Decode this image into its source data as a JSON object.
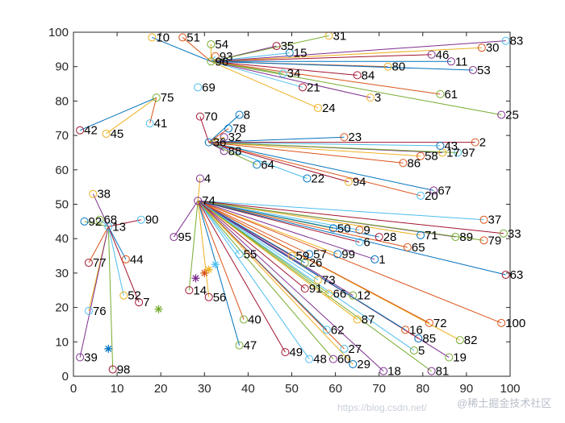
{
  "chart_data": {
    "type": "scatter",
    "title": "",
    "xlabel": "",
    "ylabel": "",
    "xlim": [
      0,
      100
    ],
    "ylim": [
      0,
      100
    ],
    "xticks": [
      0,
      10,
      20,
      30,
      40,
      50,
      60,
      70,
      80,
      90,
      100
    ],
    "yticks": [
      0,
      10,
      20,
      30,
      40,
      50,
      60,
      70,
      80,
      90,
      100
    ],
    "grid": false,
    "points": [
      {
        "id": "1",
        "x": 69,
        "y": 34
      },
      {
        "id": "2",
        "x": 92,
        "y": 68
      },
      {
        "id": "3",
        "x": 68,
        "y": 81
      },
      {
        "id": "4",
        "x": 29,
        "y": 57.5
      },
      {
        "id": "5",
        "x": 78,
        "y": 7.5
      },
      {
        "id": "6",
        "x": 65.5,
        "y": 39
      },
      {
        "id": "7",
        "x": 15,
        "y": 21.5
      },
      {
        "id": "8",
        "x": 38,
        "y": 76
      },
      {
        "id": "9",
        "x": 65.5,
        "y": 42.5
      },
      {
        "id": "10",
        "x": 18,
        "y": 98.5
      },
      {
        "id": "11",
        "x": 86.5,
        "y": 91.5
      },
      {
        "id": "12",
        "x": 64,
        "y": 23.5
      },
      {
        "id": "13",
        "x": 8,
        "y": 43.5
      },
      {
        "id": "14",
        "x": 26.5,
        "y": 25
      },
      {
        "id": "15",
        "x": 49.5,
        "y": 94
      },
      {
        "id": "16",
        "x": 76,
        "y": 13.5
      },
      {
        "id": "17",
        "x": 84.5,
        "y": 65
      },
      {
        "id": "18",
        "x": 71,
        "y": 1.5
      },
      {
        "id": "19",
        "x": 86,
        "y": 5.5
      },
      {
        "id": "20",
        "x": 79.5,
        "y": 52.5
      },
      {
        "id": "21",
        "x": 52.5,
        "y": 84
      },
      {
        "id": "22",
        "x": 53.5,
        "y": 57.5
      },
      {
        "id": "23",
        "x": 62,
        "y": 69.5
      },
      {
        "id": "24",
        "x": 56,
        "y": 78
      },
      {
        "id": "25",
        "x": 98,
        "y": 76
      },
      {
        "id": "26",
        "x": 53,
        "y": 33
      },
      {
        "id": "27",
        "x": 62,
        "y": 8
      },
      {
        "id": "28",
        "x": 70,
        "y": 40.5
      },
      {
        "id": "29",
        "x": 64,
        "y": 3.5
      },
      {
        "id": "30",
        "x": 93.5,
        "y": 95.5
      },
      {
        "id": "31",
        "x": 58.5,
        "y": 99
      },
      {
        "id": "32",
        "x": 34.5,
        "y": 69.5
      },
      {
        "id": "33",
        "x": 98.5,
        "y": 41.5
      },
      {
        "id": "34",
        "x": 48,
        "y": 88
      },
      {
        "id": "35",
        "x": 46.5,
        "y": 96
      },
      {
        "id": "36",
        "x": 31,
        "y": 68
      },
      {
        "id": "37",
        "x": 94,
        "y": 45.5
      },
      {
        "id": "38",
        "x": 4.5,
        "y": 53
      },
      {
        "id": "39",
        "x": 1.5,
        "y": 5.5
      },
      {
        "id": "40",
        "x": 39,
        "y": 16.5
      },
      {
        "id": "41",
        "x": 17.5,
        "y": 73.5
      },
      {
        "id": "42",
        "x": 1.5,
        "y": 71.5
      },
      {
        "id": "43",
        "x": 84,
        "y": 67
      },
      {
        "id": "44",
        "x": 12,
        "y": 34
      },
      {
        "id": "45",
        "x": 7.5,
        "y": 70.5
      },
      {
        "id": "46",
        "x": 82,
        "y": 93.5
      },
      {
        "id": "47",
        "x": 38,
        "y": 9
      },
      {
        "id": "48",
        "x": 54,
        "y": 5
      },
      {
        "id": "49",
        "x": 48.5,
        "y": 7
      },
      {
        "id": "50",
        "x": 59.5,
        "y": 43
      },
      {
        "id": "51",
        "x": 25,
        "y": 98.5
      },
      {
        "id": "52",
        "x": 11.5,
        "y": 23.5
      },
      {
        "id": "53",
        "x": 91.5,
        "y": 89
      },
      {
        "id": "54",
        "x": 31.5,
        "y": 96.5
      },
      {
        "id": "55",
        "x": 38,
        "y": 35.5
      },
      {
        "id": "56",
        "x": 31,
        "y": 23
      },
      {
        "id": "57",
        "x": 54,
        "y": 35.5
      },
      {
        "id": "58",
        "x": 79.5,
        "y": 64
      },
      {
        "id": "59",
        "x": 50,
        "y": 35
      },
      {
        "id": "60",
        "x": 59.5,
        "y": 5
      },
      {
        "id": "61",
        "x": 84,
        "y": 82
      },
      {
        "id": "62",
        "x": 58,
        "y": 13.5
      },
      {
        "id": "63",
        "x": 99,
        "y": 29.5
      },
      {
        "id": "64",
        "x": 42,
        "y": 61.5
      },
      {
        "id": "65",
        "x": 76.5,
        "y": 37.5
      },
      {
        "id": "66",
        "x": 58.5,
        "y": 24
      },
      {
        "id": "67",
        "x": 82.5,
        "y": 54
      },
      {
        "id": "68",
        "x": 6,
        "y": 45.5
      },
      {
        "id": "69",
        "x": 28.5,
        "y": 84
      },
      {
        "id": "70",
        "x": 29,
        "y": 75.5
      },
      {
        "id": "71",
        "x": 79.5,
        "y": 41
      },
      {
        "id": "72",
        "x": 81.5,
        "y": 15.5
      },
      {
        "id": "73",
        "x": 56,
        "y": 28
      },
      {
        "id": "74",
        "x": 28.5,
        "y": 51
      },
      {
        "id": "75",
        "x": 19,
        "y": 81
      },
      {
        "id": "76",
        "x": 3.5,
        "y": 19
      },
      {
        "id": "77",
        "x": 3.5,
        "y": 33
      },
      {
        "id": "78",
        "x": 35.5,
        "y": 72
      },
      {
        "id": "79",
        "x": 94,
        "y": 39.5
      },
      {
        "id": "80",
        "x": 72,
        "y": 90
      },
      {
        "id": "81",
        "x": 82,
        "y": 1.5
      },
      {
        "id": "82",
        "x": 88.5,
        "y": 10.5
      },
      {
        "id": "83",
        "x": 99,
        "y": 97.5
      },
      {
        "id": "84",
        "x": 65,
        "y": 87.5
      },
      {
        "id": "85",
        "x": 79,
        "y": 11
      },
      {
        "id": "86",
        "x": 75.5,
        "y": 62
      },
      {
        "id": "87",
        "x": 65,
        "y": 16.5
      },
      {
        "id": "88",
        "x": 34.5,
        "y": 65.5
      },
      {
        "id": "89",
        "x": 87.5,
        "y": 40.5
      },
      {
        "id": "90",
        "x": 15.5,
        "y": 45.5
      },
      {
        "id": "91",
        "x": 53,
        "y": 25.5
      },
      {
        "id": "92",
        "x": 2.5,
        "y": 45
      },
      {
        "id": "93",
        "x": 32.5,
        "y": 93
      },
      {
        "id": "94",
        "x": 63,
        "y": 56.5
      },
      {
        "id": "95",
        "x": 23,
        "y": 40.5
      },
      {
        "id": "96",
        "x": 31.5,
        "y": 91.5
      },
      {
        "id": "97",
        "x": 88,
        "y": 65
      },
      {
        "id": "98",
        "x": 9,
        "y": 2
      },
      {
        "id": "99",
        "x": 60.5,
        "y": 35.5
      },
      {
        "id": "100",
        "x": 98,
        "y": 15.5
      }
    ],
    "centers": [
      {
        "x": 8,
        "y": 8,
        "color": "#0072bd"
      },
      {
        "x": 19.5,
        "y": 19.5,
        "color": "#77ac30"
      },
      {
        "x": 28,
        "y": 28.5,
        "color": "#7e2f8e"
      },
      {
        "x": 30,
        "y": 30,
        "color": "#d95319"
      },
      {
        "x": 31,
        "y": 31,
        "color": "#edb120"
      },
      {
        "x": 32.5,
        "y": 32.5,
        "color": "#4dbeee"
      }
    ],
    "hubs": [
      {
        "id": "96",
        "members": [
          "10",
          "51",
          "54",
          "35",
          "31",
          "15",
          "46",
          "11",
          "80",
          "30",
          "83",
          "34",
          "21",
          "84",
          "53",
          "61",
          "24",
          "3",
          "25",
          "93"
        ]
      },
      {
        "id": "36",
        "members": [
          "70",
          "8",
          "78",
          "32",
          "88",
          "64",
          "22",
          "94",
          "23",
          "86",
          "58",
          "17",
          "97",
          "43",
          "2",
          "67",
          "20"
        ]
      },
      {
        "id": "74",
        "members": [
          "4",
          "95",
          "14",
          "55",
          "59",
          "26",
          "57",
          "99",
          "1",
          "50",
          "9",
          "6",
          "28",
          "65",
          "71",
          "89",
          "79",
          "37",
          "33",
          "63",
          "100",
          "82",
          "19",
          "81",
          "5",
          "85",
          "16",
          "72",
          "87",
          "12",
          "66",
          "73",
          "91",
          "62",
          "27",
          "29",
          "18",
          "60",
          "48",
          "49",
          "47",
          "40",
          "56"
        ]
      },
      {
        "id": "13",
        "members": [
          "38",
          "92",
          "68",
          "90",
          "44",
          "77",
          "76",
          "39",
          "98",
          "52",
          "7"
        ]
      },
      {
        "id": "75",
        "members": [
          "42",
          "41",
          "45"
        ]
      }
    ],
    "edge_colors": [
      "#0072bd",
      "#d95319",
      "#edb120",
      "#7e2f8e",
      "#77ac30",
      "#4dbeee",
      "#a2142f"
    ]
  },
  "watermark": {
    "url_text": "https://blog.csdn.net/",
    "brand_text": "@稀土掘金技术社区"
  }
}
